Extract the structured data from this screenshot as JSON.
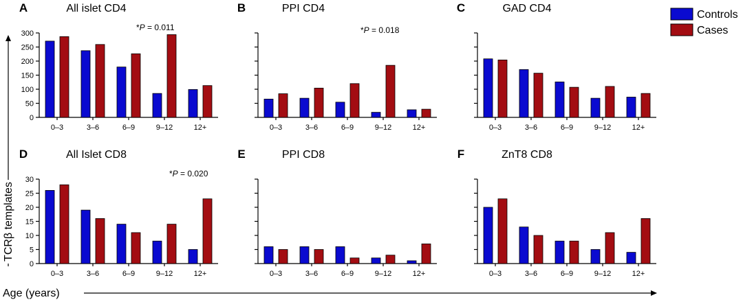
{
  "figure": {
    "ylabel": "TCRβ templates",
    "xlabel": "Age (years)",
    "legend": [
      {
        "name": "Controls",
        "color": "#0a0ad0"
      },
      {
        "name": "Cases",
        "color": "#a30d12"
      }
    ]
  },
  "chart_data": [
    {
      "panel": "A",
      "type": "bar",
      "title": "All islet CD4",
      "categories": [
        "0–3",
        "3–6",
        "6–9",
        "9–12",
        "12+"
      ],
      "ylim": [
        0,
        300
      ],
      "yticks": [
        0,
        50,
        100,
        150,
        200,
        250,
        300
      ],
      "show_tick_labels": true,
      "annotation": {
        "prefix": "*",
        "p": "P",
        "rest": " = 0.011"
      },
      "series": [
        {
          "name": "Controls",
          "values": [
            271,
            237,
            179,
            85,
            99
          ]
        },
        {
          "name": "Cases",
          "values": [
            287,
            259,
            226,
            294,
            113
          ]
        }
      ],
      "xlabel": "",
      "ylabel": "TCRβ templates"
    },
    {
      "panel": "B",
      "type": "bar",
      "title": "PPI CD4",
      "categories": [
        "0–3",
        "3–6",
        "6–9",
        "9–12",
        "12+"
      ],
      "ylim": [
        0,
        300
      ],
      "yticks": [
        0,
        50,
        100,
        150,
        200,
        250,
        300
      ],
      "show_tick_labels": false,
      "annotation": {
        "prefix": "*",
        "p": "P",
        "rest": " = 0.018"
      },
      "series": [
        {
          "name": "Controls",
          "values": [
            65,
            68,
            54,
            18,
            27
          ]
        },
        {
          "name": "Cases",
          "values": [
            84,
            104,
            120,
            185,
            29
          ]
        }
      ],
      "xlabel": "",
      "ylabel": ""
    },
    {
      "panel": "C",
      "type": "bar",
      "title": "GAD CD4",
      "categories": [
        "0–3",
        "3–6",
        "6–9",
        "9–12",
        "12+"
      ],
      "ylim": [
        0,
        300
      ],
      "yticks": [
        0,
        50,
        100,
        150,
        200,
        250,
        300
      ],
      "show_tick_labels": false,
      "annotation": null,
      "series": [
        {
          "name": "Controls",
          "values": [
            208,
            170,
            126,
            68,
            72
          ]
        },
        {
          "name": "Cases",
          "values": [
            204,
            157,
            107,
            110,
            85
          ]
        }
      ],
      "xlabel": "",
      "ylabel": ""
    },
    {
      "panel": "D",
      "type": "bar",
      "title": "All Islet CD8",
      "categories": [
        "0–3",
        "3–6",
        "6–9",
        "9–12",
        "12+"
      ],
      "ylim": [
        0,
        30
      ],
      "yticks": [
        0,
        5,
        10,
        15,
        20,
        25,
        30
      ],
      "show_tick_labels": true,
      "annotation": {
        "prefix": "*",
        "p": "P",
        "rest": " = 0.020"
      },
      "series": [
        {
          "name": "Controls",
          "values": [
            26,
            19,
            14,
            8,
            5
          ]
        },
        {
          "name": "Cases",
          "values": [
            28,
            16,
            11,
            14,
            23
          ]
        }
      ],
      "xlabel": "",
      "ylabel": "TCRβ templates"
    },
    {
      "panel": "E",
      "type": "bar",
      "title": "PPI CD8",
      "categories": [
        "0–3",
        "3–6",
        "6–9",
        "9–12",
        "12+"
      ],
      "ylim": [
        0,
        30
      ],
      "yticks": [
        0,
        5,
        10,
        15,
        20,
        25,
        30
      ],
      "show_tick_labels": false,
      "annotation": null,
      "series": [
        {
          "name": "Controls",
          "values": [
            6,
            6,
            6,
            2,
            1
          ]
        },
        {
          "name": "Cases",
          "values": [
            5,
            5,
            2,
            3,
            7
          ]
        }
      ],
      "xlabel": "",
      "ylabel": ""
    },
    {
      "panel": "F",
      "type": "bar",
      "title": "ZnT8 CD8",
      "categories": [
        "0–3",
        "3–6",
        "6–9",
        "9–12",
        "12+"
      ],
      "ylim": [
        0,
        30
      ],
      "yticks": [
        0,
        5,
        10,
        15,
        20,
        25,
        30
      ],
      "show_tick_labels": false,
      "annotation": null,
      "series": [
        {
          "name": "Controls",
          "values": [
            20,
            13,
            8,
            5,
            4
          ]
        },
        {
          "name": "Cases",
          "values": [
            23,
            10,
            8,
            11,
            16
          ]
        }
      ],
      "xlabel": "",
      "ylabel": ""
    }
  ]
}
